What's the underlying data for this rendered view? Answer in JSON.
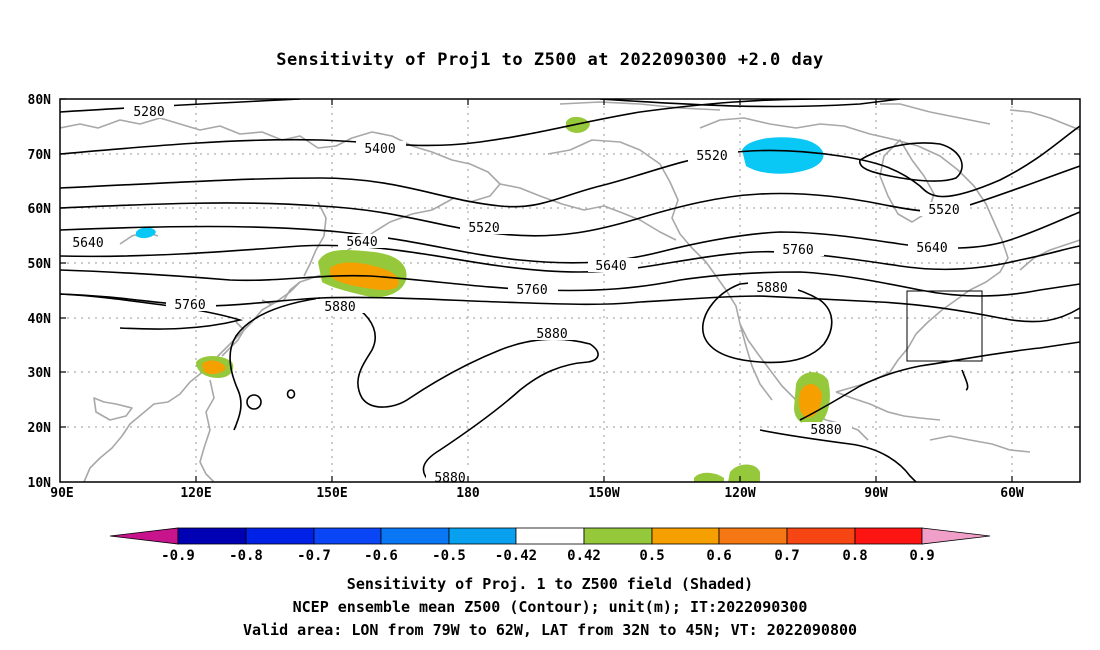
{
  "title": "Sensitivity of Proj1 to Z500 at 2022090300 +2.0 day",
  "map": {
    "lat_labels": [
      "80N",
      "70N",
      "60N",
      "50N",
      "40N",
      "30N",
      "20N",
      "10N"
    ],
    "lon_labels": [
      "90E",
      "120E",
      "150E",
      "180",
      "150W",
      "120W",
      "90W",
      "60W"
    ],
    "contour_labels": [
      "5280",
      "5400",
      "5520",
      "5520",
      "5520",
      "5640",
      "5640",
      "5640",
      "5640",
      "5760",
      "5760",
      "5760",
      "5880",
      "5880",
      "5880",
      "5880",
      "5880"
    ],
    "valid_box": {
      "lon_from": "79W",
      "lon_to": "62W",
      "lat_from": "32N",
      "lat_to": "45N"
    }
  },
  "colorbar": {
    "labels": [
      "-0.9",
      "-0.8",
      "-0.7",
      "-0.6",
      "-0.5",
      "-0.42",
      "0.42",
      "0.5",
      "0.6",
      "0.7",
      "0.8",
      "0.9"
    ],
    "colors": [
      "#0000b4",
      "#0022e6",
      "#0a46f5",
      "#0a78f5",
      "#0aa0f0",
      "#00c8f5",
      "#ffffff",
      "#96c83c",
      "#f5a000",
      "#f57814",
      "#f54614",
      "#ff1414"
    ],
    "under_color": "#c8148c",
    "over_color": "#f0a0c8"
  },
  "captions": {
    "line1": "Sensitivity of Proj. 1 to Z500 field (Shaded)",
    "line2": "NCEP ensemble mean Z500 (Contour); unit(m); IT:2022090300",
    "line3": "Valid area: LON from 79W to 62W, LAT from 32N to 45N; VT: 2022090800"
  }
}
